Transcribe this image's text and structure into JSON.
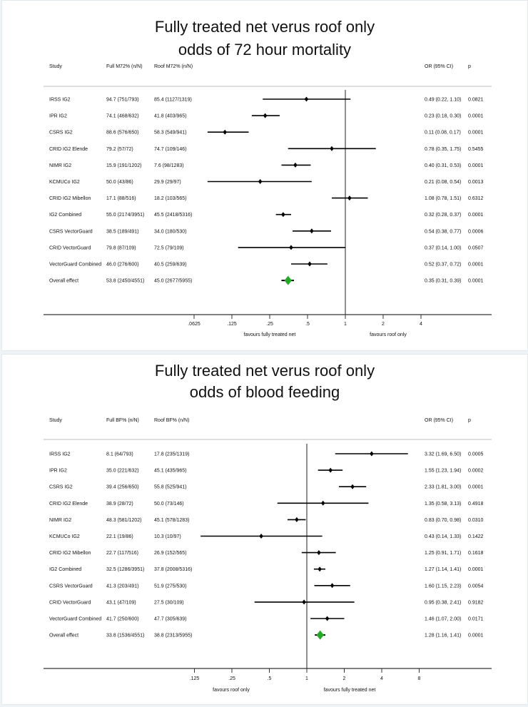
{
  "chart_data": [
    {
      "type": "forest",
      "title_lines": [
        "Fully treated net verus roof only",
        "odds of 72 hour mortality"
      ],
      "columns": [
        "Study",
        "Full M72% (n/N)",
        "Roof M72% (n/N)",
        "OR (95% CI)",
        "p"
      ],
      "rows": [
        {
          "study": "IRSS IG2",
          "full": "94.7 (751/793)",
          "roof": "85.4 (1127/1319)",
          "or": 0.49,
          "lo": 0.22,
          "hi": 1.1,
          "or_text": "0.49 (0.22, 1.10)",
          "p": "0.0821"
        },
        {
          "study": "IPR IG2",
          "full": "74.1 (468/632)",
          "roof": "41.8 (403/965)",
          "or": 0.23,
          "lo": 0.18,
          "hi": 0.3,
          "or_text": "0.23 (0.18, 0.30)",
          "p": "0.0001"
        },
        {
          "study": "CSRS IG2",
          "full": "88.6 (576/650)",
          "roof": "58.3 (549/941)",
          "or": 0.11,
          "lo": 0.08,
          "hi": 0.17,
          "or_text": "0.11 (0.08, 0.17)",
          "p": "0.0001"
        },
        {
          "study": "CRID IG2 Elende",
          "full": "79.2 (57/72)",
          "roof": "74.7 (109/146)",
          "or": 0.78,
          "lo": 0.35,
          "hi": 1.75,
          "or_text": "0.78 (0.35, 1.75)",
          "p": "0.5455"
        },
        {
          "study": "NIMR IG2",
          "full": "15.9 (191/1202)",
          "roof": "7.6 (98/1283)",
          "or": 0.4,
          "lo": 0.31,
          "hi": 0.53,
          "or_text": "0.40 (0.31, 0.53)",
          "p": "0.0001"
        },
        {
          "study": "KCMUCo IG2",
          "full": "50.0 (43/86)",
          "roof": "29.9 (29/97)",
          "or": 0.21,
          "lo": 0.08,
          "hi": 0.54,
          "or_text": "0.21 (0.08, 0.54)",
          "p": "0.0013"
        },
        {
          "study": "CRID IG2 Mibellon",
          "full": "17.1 (88/516)",
          "roof": "18.2 (103/565)",
          "or": 1.08,
          "lo": 0.78,
          "hi": 1.51,
          "or_text": "1.08 (0.78, 1.51)",
          "p": "0.6312"
        },
        {
          "study": "IG2 Combined",
          "full": "55.0 (2174/3951)",
          "roof": "45.5 (2418/5316)",
          "or": 0.32,
          "lo": 0.28,
          "hi": 0.37,
          "or_text": "0.32 (0.28, 0.37)",
          "p": "0.0001"
        },
        {
          "study": "CSRS VectorGuard",
          "full": "38.5 (189/491)",
          "roof": "34.0 (180/530)",
          "or": 0.54,
          "lo": 0.38,
          "hi": 0.77,
          "or_text": "0.54 (0.38, 0.77)",
          "p": "0.0006"
        },
        {
          "study": "CRID VectorGuard",
          "full": "79.8 (87/109)",
          "roof": "72.5 (79/109)",
          "or": 0.37,
          "lo": 0.14,
          "hi": 1.0,
          "or_text": "0.37 (0.14, 1.00)",
          "p": "0.0507"
        },
        {
          "study": "VectorGuard Combined",
          "full": "46.0 (276/600)",
          "roof": "40.5 (259/639)",
          "or": 0.52,
          "lo": 0.37,
          "hi": 0.72,
          "or_text": "0.52 (0.37, 0.72)",
          "p": "0.0001"
        },
        {
          "study": "Overall effect",
          "full": "53.8 (2450/4551)",
          "roof": "45.0 (2677/5955)",
          "or": 0.35,
          "lo": 0.31,
          "hi": 0.39,
          "or_text": "0.35 (0.31, 0.39)",
          "p": "0.0001",
          "overall": true
        }
      ],
      "x_scale": "log2",
      "xlim": [
        0.04,
        14
      ],
      "ticks": [
        0.0625,
        0.125,
        0.25,
        0.5,
        1,
        2,
        4
      ],
      "tick_labels": [
        ".0625",
        ".125",
        ".25",
        ".5",
        "1",
        "2",
        "4"
      ],
      "favours_left": "favours fully treated net",
      "favours_right": "favours roof only",
      "point_color": "#000000",
      "overall_color": "#22aa22"
    },
    {
      "type": "forest",
      "title_lines": [
        "Fully treated net verus roof only",
        "odds of blood feeding"
      ],
      "columns": [
        "Study",
        "Full BF% (n/N)",
        "Roof BF% (n/N)",
        "OR (95% CI)",
        "p"
      ],
      "rows": [
        {
          "study": "IRSS IG2",
          "full": "8.1 (64/793)",
          "roof": "17.8 (235/1319)",
          "or": 3.32,
          "lo": 1.69,
          "hi": 6.5,
          "or_text": "3.32 (1.69, 6.50)",
          "p": "0.0005"
        },
        {
          "study": "IPR IG2",
          "full": "35.0 (221/632)",
          "roof": "45.1 (435/965)",
          "or": 1.55,
          "lo": 1.23,
          "hi": 1.94,
          "or_text": "1.55 (1.23, 1.94)",
          "p": "0.0002"
        },
        {
          "study": "CSRS IG2",
          "full": "39.4 (256/650)",
          "roof": "55.8 (525/941)",
          "or": 2.33,
          "lo": 1.81,
          "hi": 3.0,
          "or_text": "2.33 (1.81, 3.00)",
          "p": "0.0001"
        },
        {
          "study": "CRID IG2 Elende",
          "full": "38.9 (28/72)",
          "roof": "50.0 (73/146)",
          "or": 1.35,
          "lo": 0.58,
          "hi": 3.13,
          "or_text": "1.35 (0.58, 3.13)",
          "p": "0.4918"
        },
        {
          "study": "NIMR IG2",
          "full": "48.3 (581/1202)",
          "roof": "45.1 (578/1283)",
          "or": 0.83,
          "lo": 0.7,
          "hi": 0.98,
          "or_text": "0.83 (0.70, 0.98)",
          "p": "0.0310"
        },
        {
          "study": "KCMUCo IG2",
          "full": "22.1 (19/86)",
          "roof": "10.3 (10/97)",
          "or": 0.43,
          "lo": 0.14,
          "hi": 1.33,
          "or_text": "0.43 (0.14, 1.33)",
          "p": "0.1422"
        },
        {
          "study": "CRID IG2 Mibellon",
          "full": "22.7 (117/516)",
          "roof": "26.9 (152/565)",
          "or": 1.25,
          "lo": 0.91,
          "hi": 1.71,
          "or_text": "1.25 (0.91, 1.71)",
          "p": "0.1618"
        },
        {
          "study": "IG2 Combined",
          "full": "32.5 (1286/3951)",
          "roof": "37.8 (2008/5316)",
          "or": 1.27,
          "lo": 1.14,
          "hi": 1.41,
          "or_text": "1.27 (1.14, 1.41)",
          "p": "0.0001"
        },
        {
          "study": "CSRS VectorGuard",
          "full": "41.3 (203/491)",
          "roof": "51.9 (275/530)",
          "or": 1.6,
          "lo": 1.15,
          "hi": 2.23,
          "or_text": "1.60 (1.15, 2.23)",
          "p": "0.0054"
        },
        {
          "study": "CRID VectorGuard",
          "full": "43.1 (47/109)",
          "roof": "27.5 (30/109)",
          "or": 0.95,
          "lo": 0.38,
          "hi": 2.41,
          "or_text": "0.95 (0.38, 2.41)",
          "p": "0.9182"
        },
        {
          "study": "VectorGuard Combined",
          "full": "41.7 (250/600)",
          "roof": "47.7 (305/639)",
          "or": 1.46,
          "lo": 1.07,
          "hi": 2.0,
          "or_text": "1.46 (1.07, 2.00)",
          "p": "0.0171"
        },
        {
          "study": "Overall effect",
          "full": "33.8 (1536/4551)",
          "roof": "38.8 (2313/5955)",
          "or": 1.28,
          "lo": 1.16,
          "hi": 1.41,
          "or_text": "1.28 (1.16, 1.41)",
          "p": "0.0001",
          "overall": true
        }
      ],
      "x_scale": "log2",
      "xlim": [
        0.05,
        25
      ],
      "ticks": [
        0.125,
        0.25,
        0.5,
        1,
        2,
        4,
        8
      ],
      "tick_labels": [
        ".125",
        ".25",
        ".5",
        "1",
        "2",
        "4",
        "8"
      ],
      "favours_left": "favours roof only",
      "favours_right": "favours fully treated net",
      "point_color": "#000000",
      "overall_color": "#22aa22"
    }
  ]
}
